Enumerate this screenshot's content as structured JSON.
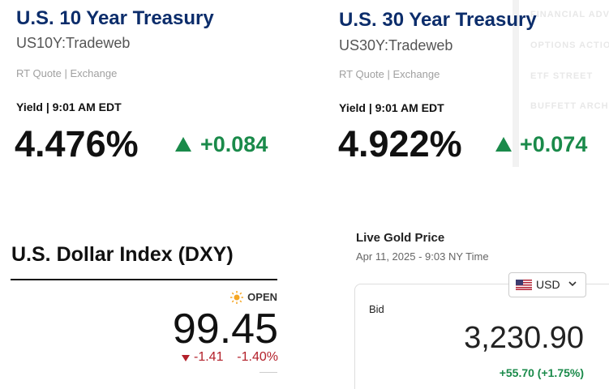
{
  "treasury_10y": {
    "title": "U.S. 10 Year Treasury",
    "symbol": "US10Y:Tradeweb",
    "source": "RT Quote | Exchange",
    "time": "Yield | 9:01 AM EDT",
    "value": "4.476%",
    "change": "+0.084"
  },
  "treasury_30y": {
    "title": "U.S. 30 Year Treasury",
    "symbol": "US30Y:Tradeweb",
    "source": "RT Quote | Exchange",
    "time": "Yield | 9:01 AM EDT",
    "value": "4.922%",
    "change": "+0.074"
  },
  "sidebar": {
    "items": [
      "FINANCIAL ADV",
      "OPTIONS ACTIO",
      "ETF STREET",
      "BUFFETT ARCHI"
    ]
  },
  "dxy": {
    "title": "U.S. Dollar Index (DXY)",
    "status": "OPEN",
    "value": "99.45",
    "change": "-1.41",
    "change_percent": "-1.40%"
  },
  "gold": {
    "title": "Live Gold Price",
    "time": "Apr 11, 2025 - 9:03 NY Time",
    "currency": "USD",
    "label": "Bid",
    "value": "3,230.90",
    "change": "+55.70 (+1.75%)"
  }
}
